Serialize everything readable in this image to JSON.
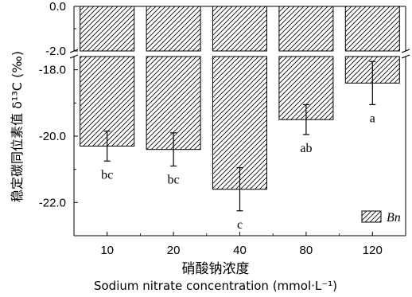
{
  "chart_data": {
    "type": "bar",
    "series_name": "Bn",
    "categories": [
      "10",
      "20",
      "40",
      "80",
      "120"
    ],
    "values": [
      -20.3,
      -20.4,
      -21.6,
      -19.5,
      -18.4
    ],
    "errors": [
      0.45,
      0.5,
      0.65,
      0.45,
      0.65
    ],
    "letters": [
      "bc",
      "bc",
      "c",
      "ab",
      "a"
    ],
    "ylabel": "稳定碳同位素值 δ¹³C (‰)",
    "xlabel_cn": "硝酸钠浓度",
    "xlabel_en": "Sodium nitrate concentration (mmol·L⁻¹)",
    "y_upper_segment": [
      -2.0,
      0.0
    ],
    "y_lower_segment": [
      -23.0,
      -17.6
    ],
    "y_ticks_upper": [
      "0.0",
      "-2.0"
    ],
    "y_ticks_lower": [
      "-18.0",
      "-20.0",
      "-22.0"
    ],
    "broken_axis": true,
    "legend_position": "bottom-right",
    "fill": "diagonal hatch"
  }
}
